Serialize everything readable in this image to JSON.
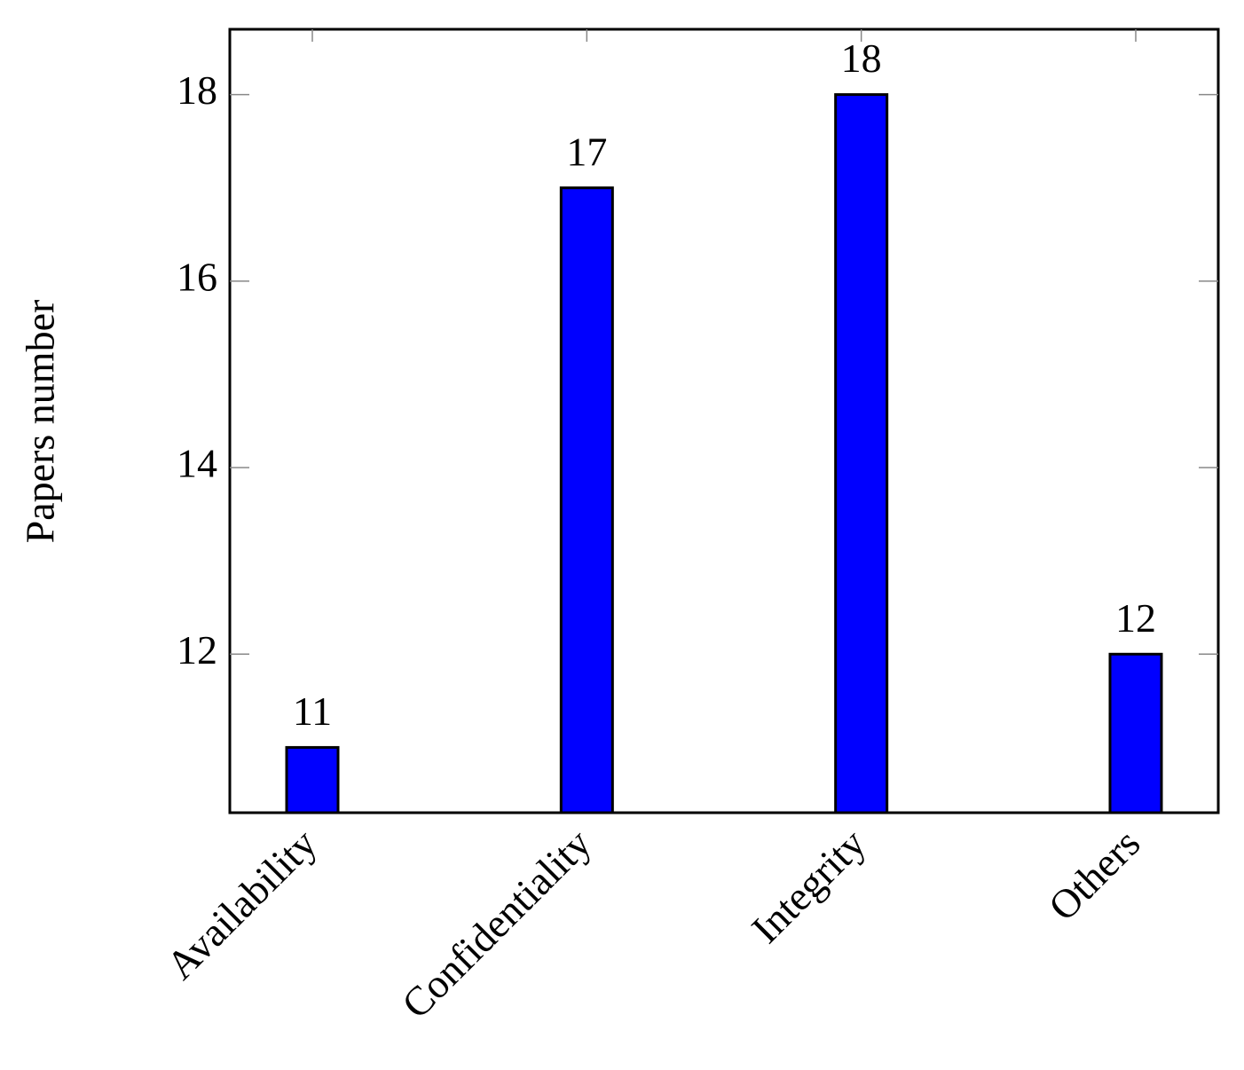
{
  "chart_data": {
    "type": "bar",
    "y_label": "Papers number",
    "categories": [
      "Availability",
      "Confidentiality",
      "Integrity",
      "Others"
    ],
    "values": [
      11,
      17,
      18,
      12
    ],
    "color": "#0000ff",
    "ylim": [
      10.3,
      18.7
    ],
    "yticks": [
      12,
      14,
      16,
      18
    ],
    "grid": false
  }
}
